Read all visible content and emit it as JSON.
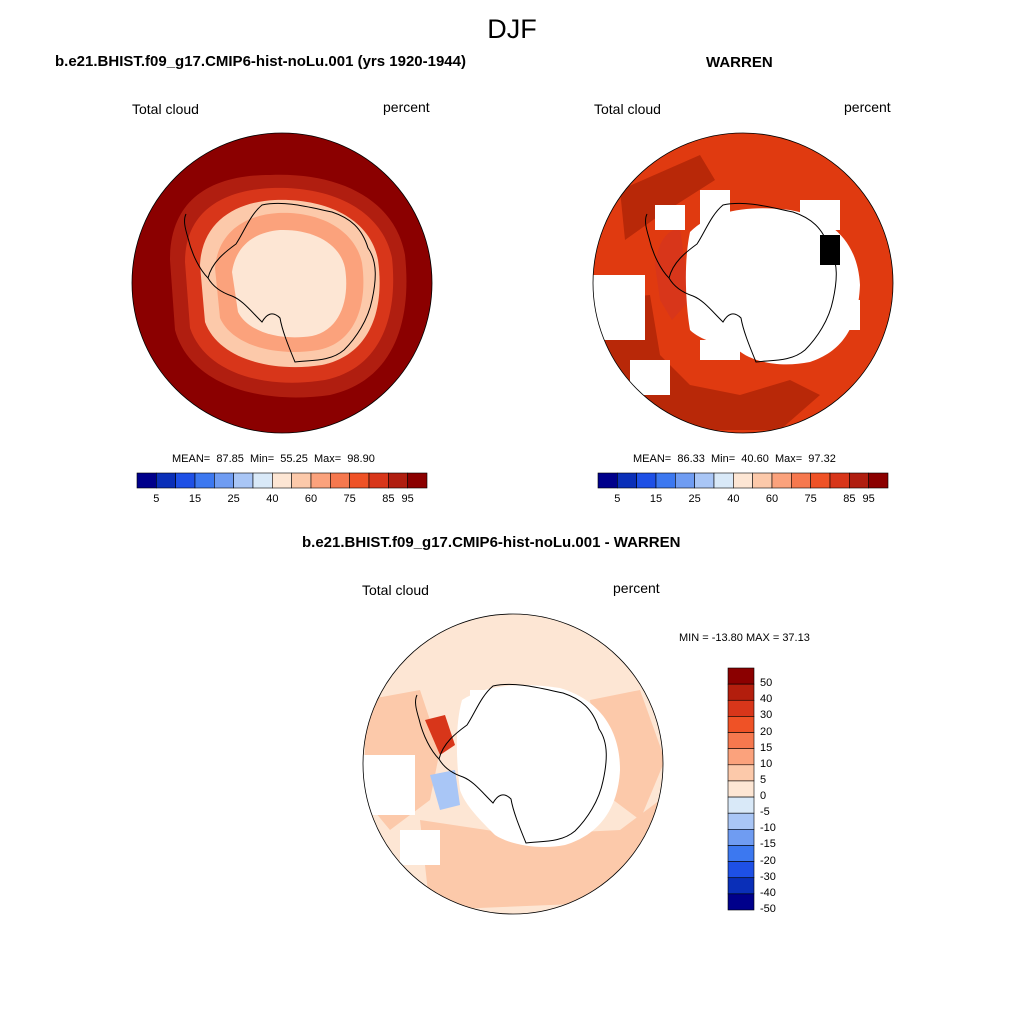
{
  "figure": {
    "title": "DJF"
  },
  "panels": [
    {
      "title": "b.e21.BHIST.f09_g17.CMIP6-hist-noLu.001 (yrs 1920-1944)",
      "left_label": "Total cloud",
      "right_label": "percent",
      "stats": {
        "mean_label": "MEAN=",
        "mean": "87.85",
        "min_label": "Min=",
        "min": "55.25",
        "max_label": "Max=",
        "max": "98.90"
      }
    },
    {
      "title": "WARREN",
      "left_label": "Total cloud",
      "right_label": "percent",
      "stats": {
        "mean_label": "MEAN=",
        "mean": "86.33",
        "min_label": "Min=",
        "min": "40.60",
        "max_label": "Max=",
        "max": "97.32"
      }
    },
    {
      "title": "b.e21.BHIST.f09_g17.CMIP6-hist-noLu.001 - WARREN",
      "left_label": "Total cloud",
      "right_label": "percent",
      "stats_text": "MIN = -13.80 MAX =  37.13"
    }
  ],
  "colorbars": {
    "absolute": {
      "colors": [
        "#00008b",
        "#0a2fb8",
        "#1e50e6",
        "#3c78f0",
        "#6f9cf2",
        "#a9c6f6",
        "#d9e9f8",
        "#fde6d4",
        "#fcc9aa",
        "#fba27c",
        "#f6784e",
        "#ef5226",
        "#d8361a",
        "#b01e10",
        "#8b0000"
      ],
      "labels": [
        "5",
        "15",
        "25",
        "40",
        "60",
        "75",
        "85",
        "95"
      ]
    },
    "difference": {
      "colors": [
        "#8b0000",
        "#b31e0d",
        "#d8361a",
        "#ef5226",
        "#f6784e",
        "#fba27c",
        "#fcc9aa",
        "#fde6d4",
        "#d9e9f8",
        "#a9c6f6",
        "#6f9cf2",
        "#3c78f0",
        "#1e50e6",
        "#0a2fb8",
        "#00008b"
      ],
      "labels": [
        "50",
        "40",
        "30",
        "20",
        "15",
        "10",
        "5",
        "0",
        "-5",
        "-10",
        "-15",
        "-20",
        "-30",
        "-40",
        "-50"
      ]
    }
  },
  "map_colors": {
    "ocean_high": "#8b0000",
    "ocean_mid": "#b01e10",
    "warren_ocean": "#e03a10",
    "warren_dark": "#b82808",
    "coast": "#d8361a",
    "interior": "#fde6d4",
    "interior2": "#fcc9aa",
    "diff_base": "#fde6d4",
    "diff_mid": "#fcc9aa",
    "diff_neg": "#a9c6f6",
    "missing": "#ffffff",
    "coastline": "#000000"
  }
}
